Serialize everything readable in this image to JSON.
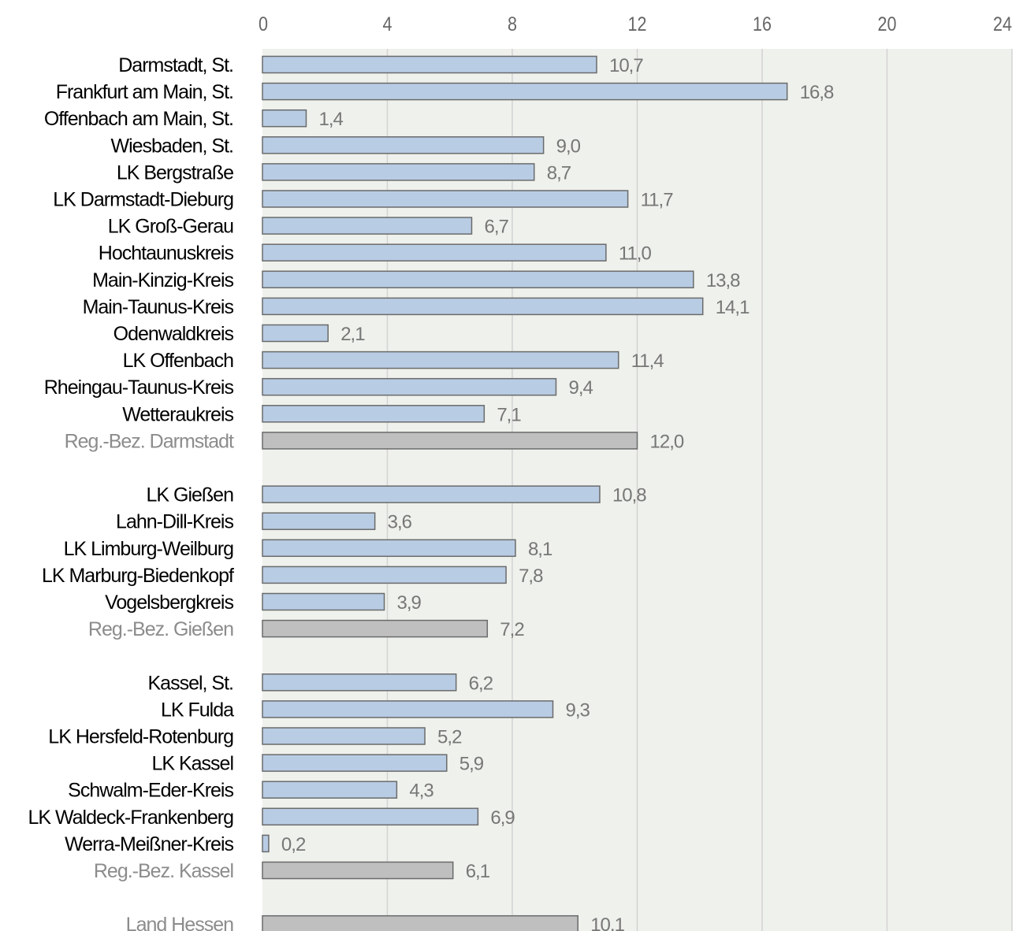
{
  "chart_data": {
    "type": "bar",
    "orientation": "horizontal",
    "x_ticks": [
      "0",
      "4",
      "8",
      "12",
      "16",
      "20",
      "24"
    ],
    "xlim": [
      0,
      24
    ],
    "grid": true,
    "legend": "none",
    "colors": {
      "district_bar": "#b8cce4",
      "aggregate_bar": "#bfbfbf",
      "bar_border": "#6b6b6b",
      "plot_background": "#eef1ec",
      "gridline": "#d3d3d3",
      "label_text": "#000000",
      "aggregate_label_text": "#8c8c8c",
      "value_text": "#777777",
      "tick_text": "#666666"
    },
    "rows": [
      {
        "label": "Darmstadt, St.",
        "value_label": "10,7",
        "value": 10.7,
        "kind": "district"
      },
      {
        "label": "Frankfurt am Main, St.",
        "value_label": "16,8",
        "value": 16.8,
        "kind": "district"
      },
      {
        "label": "Offenbach am Main, St.",
        "value_label": "1,4",
        "value": 1.4,
        "kind": "district"
      },
      {
        "label": "Wiesbaden, St.",
        "value_label": "9,0",
        "value": 9.0,
        "kind": "district"
      },
      {
        "label": "LK Bergstraße",
        "value_label": "8,7",
        "value": 8.7,
        "kind": "district"
      },
      {
        "label": "LK Darmstadt-Dieburg",
        "value_label": "11,7",
        "value": 11.7,
        "kind": "district"
      },
      {
        "label": "LK Groß-Gerau",
        "value_label": "6,7",
        "value": 6.7,
        "kind": "district"
      },
      {
        "label": "Hochtaunuskreis",
        "value_label": "11,0",
        "value": 11.0,
        "kind": "district"
      },
      {
        "label": "Main-Kinzig-Kreis",
        "value_label": "13,8",
        "value": 13.8,
        "kind": "district"
      },
      {
        "label": "Main-Taunus-Kreis",
        "value_label": "14,1",
        "value": 14.1,
        "kind": "district"
      },
      {
        "label": "Odenwaldkreis",
        "value_label": "2,1",
        "value": 2.1,
        "kind": "district"
      },
      {
        "label": "LK Offenbach",
        "value_label": "11,4",
        "value": 11.4,
        "kind": "district"
      },
      {
        "label": "Rheingau-Taunus-Kreis",
        "value_label": "9,4",
        "value": 9.4,
        "kind": "district"
      },
      {
        "label": "Wetteraukreis",
        "value_label": "7,1",
        "value": 7.1,
        "kind": "district"
      },
      {
        "label": "Reg.-Bez. Darmstadt",
        "value_label": "12,0",
        "value": 12.0,
        "kind": "aggregate"
      },
      null,
      {
        "label": "LK Gießen",
        "value_label": "10,8",
        "value": 10.8,
        "kind": "district"
      },
      {
        "label": "Lahn-Dill-Kreis",
        "value_label": "3,6",
        "value": 3.6,
        "kind": "district"
      },
      {
        "label": "LK Limburg-Weilburg",
        "value_label": "8,1",
        "value": 8.1,
        "kind": "district"
      },
      {
        "label": "LK Marburg-Biedenkopf",
        "value_label": "7,8",
        "value": 7.8,
        "kind": "district"
      },
      {
        "label": "Vogelsbergkreis",
        "value_label": "3,9",
        "value": 3.9,
        "kind": "district"
      },
      {
        "label": "Reg.-Bez. Gießen",
        "value_label": "7,2",
        "value": 7.2,
        "kind": "aggregate"
      },
      null,
      {
        "label": "Kassel, St.",
        "value_label": "6,2",
        "value": 6.2,
        "kind": "district"
      },
      {
        "label": "LK Fulda",
        "value_label": "9,3",
        "value": 9.3,
        "kind": "district"
      },
      {
        "label": "LK Hersfeld-Rotenburg",
        "value_label": "5,2",
        "value": 5.2,
        "kind": "district"
      },
      {
        "label": "LK Kassel",
        "value_label": "5,9",
        "value": 5.9,
        "kind": "district"
      },
      {
        "label": "Schwalm-Eder-Kreis",
        "value_label": "4,3",
        "value": 4.3,
        "kind": "district"
      },
      {
        "label": "LK Waldeck-Frankenberg",
        "value_label": "6,9",
        "value": 6.9,
        "kind": "district"
      },
      {
        "label": "Werra-Meißner-Kreis",
        "value_label": "0,2",
        "value": 0.2,
        "kind": "district"
      },
      {
        "label": "Reg.-Bez. Kassel",
        "value_label": "6,1",
        "value": 6.1,
        "kind": "aggregate"
      },
      null,
      {
        "label": "Land Hessen",
        "value_label": "10,1",
        "value": 10.1,
        "kind": "aggregate"
      }
    ]
  }
}
